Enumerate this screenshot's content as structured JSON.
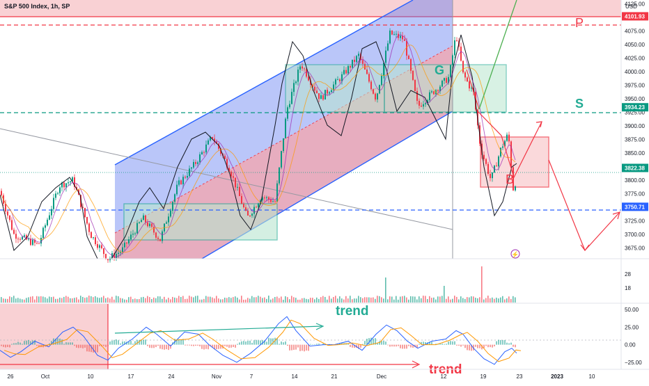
{
  "header": {
    "title": "S&P 500 Index, 1h, SP",
    "currency": "USD"
  },
  "colors": {
    "up": "#089981",
    "down": "#f23645",
    "channel_blue": "#2962ff",
    "green_label": "#22ab94",
    "red_label": "#f23645",
    "blue_line": "#2962ff",
    "macd_line": "#2962ff",
    "signal_line": "#ff9800"
  },
  "chart_data": [
    {
      "type": "candlestick",
      "title": "",
      "y_ticks": [
        3675,
        3700,
        3725,
        3750,
        3775,
        3800,
        3825,
        3850,
        3875,
        3900,
        3925,
        3950,
        3975,
        4000,
        4025,
        4050,
        4075,
        4100,
        4125
      ],
      "ylim": [
        3655,
        4132
      ],
      "x_ticks": [
        "26",
        "Oct",
        "10",
        "17",
        "24",
        "Nov",
        "7",
        "14",
        "21",
        "Dec",
        "12",
        "19",
        "23",
        "2023",
        "10"
      ],
      "price_labels": [
        {
          "name": "p-level",
          "value": 4101.93,
          "label": "4101.93",
          "color": "#f23645"
        },
        {
          "name": "s-level",
          "value": 3934.23,
          "label": "3934.23",
          "color": "#089981"
        },
        {
          "name": "last-price",
          "value": 3822.38,
          "label": "3822.38",
          "color": "#089981"
        },
        {
          "name": "support-level",
          "value": 3750.71,
          "label": "3750.71",
          "color": "#2962ff"
        }
      ],
      "annotations": [
        {
          "text": "P",
          "color": "#f23645"
        },
        {
          "text": "G",
          "color": "#22ab94"
        },
        {
          "text": "S",
          "color": "#22ab94"
        },
        {
          "text": "B",
          "color": "#f23645"
        }
      ]
    },
    {
      "type": "bar",
      "title": "",
      "y_ticks": [
        18,
        28
      ]
    },
    {
      "type": "line",
      "title": "",
      "y_ticks": [
        50.0,
        25.0,
        0.0,
        -25.0
      ],
      "y_tick_labels": [
        "50.00",
        "25.00",
        "0.00",
        "−25.00"
      ],
      "ylim": [
        -35,
        58
      ],
      "annotations": [
        {
          "text": "trend",
          "color": "#22ab94"
        },
        {
          "text": "trend",
          "color": "#f23645"
        }
      ]
    }
  ]
}
